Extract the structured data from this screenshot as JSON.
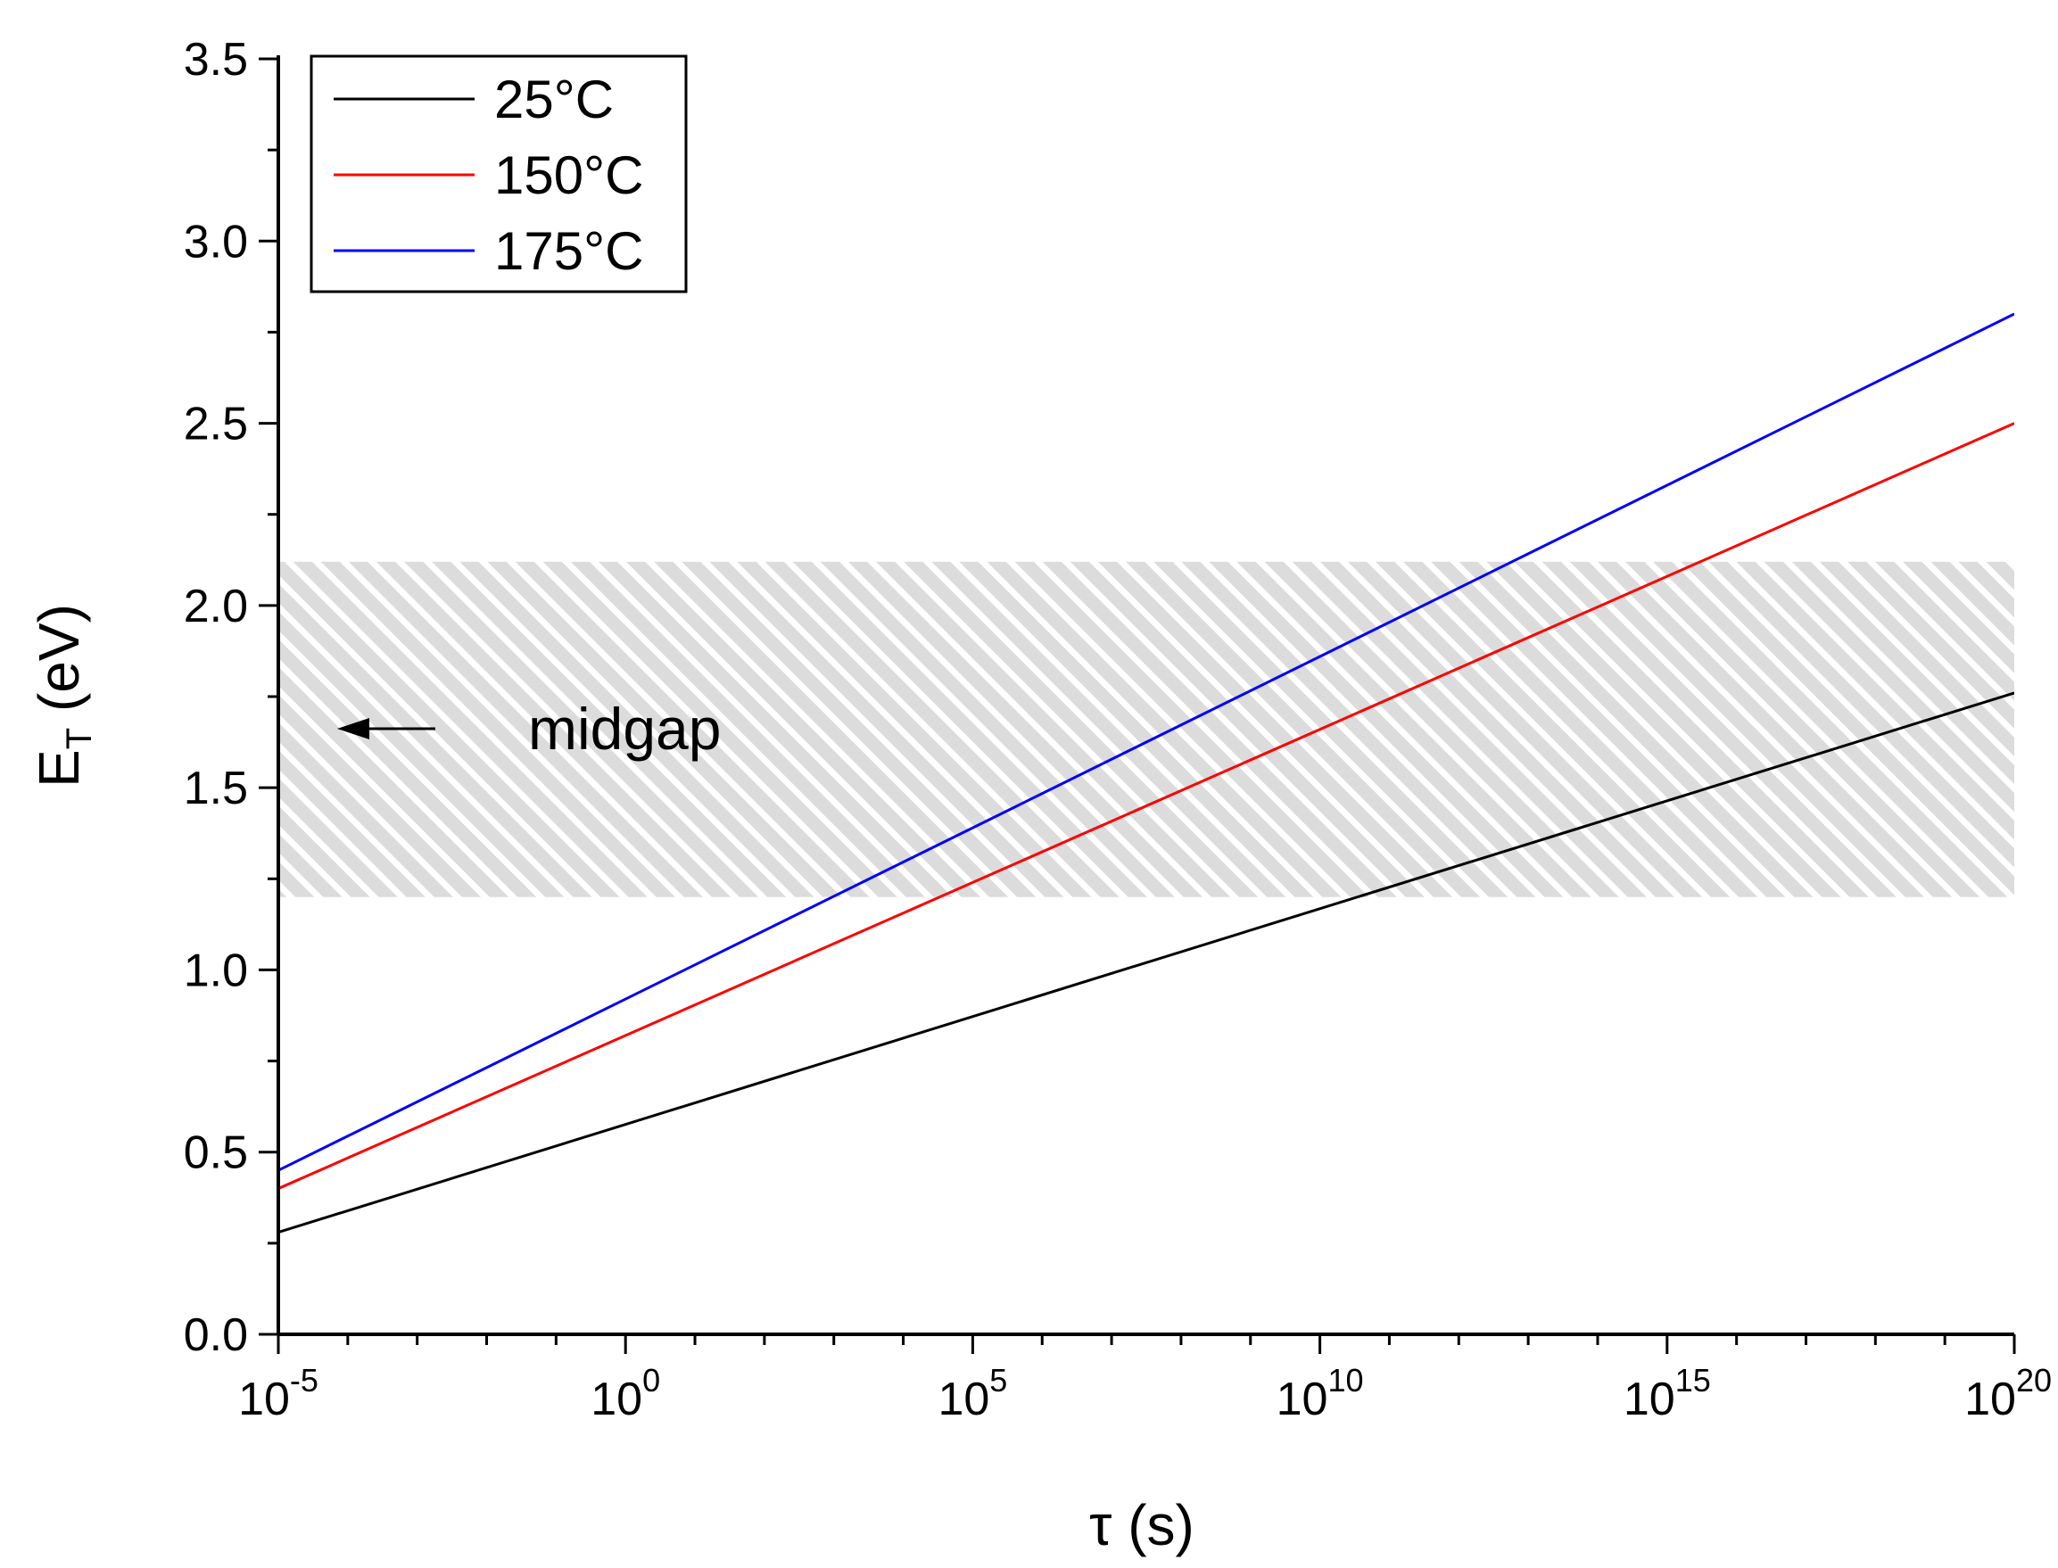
{
  "chart_data": {
    "type": "line",
    "title": "",
    "xlabel": "τ (s)",
    "ylabel": "E",
    "ylabel_sub": "T",
    "ylabel_unit": " (eV)",
    "xscale": "log",
    "x_exponent_range": [
      -5,
      20
    ],
    "xlim": [
      1e-05,
      1e+20
    ],
    "ylim": [
      0.0,
      3.5
    ],
    "xticks": [
      {
        "base": "10",
        "exp": "-5",
        "pow": -5
      },
      {
        "base": "10",
        "exp": "0",
        "pow": 0
      },
      {
        "base": "10",
        "exp": "5",
        "pow": 5
      },
      {
        "base": "10",
        "exp": "10",
        "pow": 10
      },
      {
        "base": "10",
        "exp": "15",
        "pow": 15
      },
      {
        "base": "10",
        "exp": "20",
        "pow": 20
      }
    ],
    "yticks": [
      {
        "label": "0.0",
        "value": 0.0
      },
      {
        "label": "0.5",
        "value": 0.5
      },
      {
        "label": "1.0",
        "value": 1.0
      },
      {
        "label": "1.5",
        "value": 1.5
      },
      {
        "label": "2.0",
        "value": 2.0
      },
      {
        "label": "2.5",
        "value": 2.5
      },
      {
        "label": "3.0",
        "value": 3.0
      },
      {
        "label": "3.5",
        "value": 3.5
      }
    ],
    "series": [
      {
        "name": "25°C",
        "color": "#000000",
        "x_exp": [
          -5,
          20
        ],
        "y": [
          0.28,
          1.76
        ]
      },
      {
        "name": "150°C",
        "color": "#ff0000",
        "x_exp": [
          -5,
          20
        ],
        "y": [
          0.4,
          2.5
        ]
      },
      {
        "name": "175°C",
        "color": "#0000ff",
        "x_exp": [
          -5,
          20
        ],
        "y": [
          0.45,
          2.8
        ]
      }
    ],
    "shaded_band": {
      "y_from": 1.2,
      "y_to": 2.12,
      "fill": "#dcdcdc",
      "hatch": "#ffffff"
    },
    "annotation": {
      "text": "midgap",
      "arrow": "left"
    },
    "legend": {
      "position": "top-left"
    }
  }
}
